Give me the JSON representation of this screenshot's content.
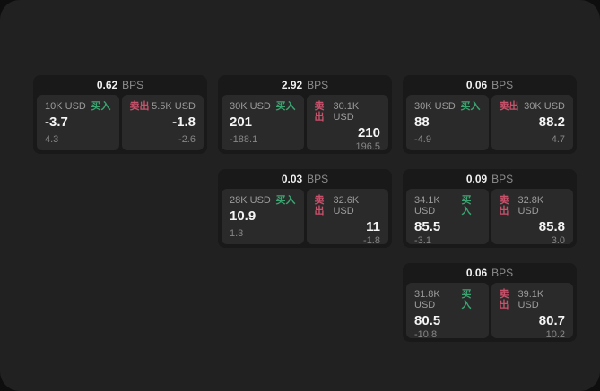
{
  "app": {
    "bps_label": "BPS",
    "buy_label": "买入",
    "sell_label": "卖出"
  },
  "colors": {
    "buy_green": "#3aa571",
    "sell_red": "#c9516b",
    "surface_bg": "#212121",
    "card_bg": "#191919",
    "panel_bg": "#2a2a2a"
  },
  "cards": [
    {
      "bps_value": "0.62",
      "buy": {
        "amount": "10K USD",
        "value": "-3.7",
        "sub_value": "4.3"
      },
      "sell": {
        "amount": "5.5K USD",
        "value": "-1.8",
        "sub_value": "-2.6"
      }
    },
    {
      "bps_value": "2.92",
      "buy": {
        "amount": "30K USD",
        "value": "201",
        "sub_value": "-188.1"
      },
      "sell": {
        "amount": "30.1K USD",
        "value": "210",
        "sub_value": "196.5"
      }
    },
    {
      "bps_value": "0.06",
      "buy": {
        "amount": "30K USD",
        "value": "88",
        "sub_value": "-4.9"
      },
      "sell": {
        "amount": "30K USD",
        "value": "88.2",
        "sub_value": "4.7"
      }
    },
    {
      "bps_value": "0.03",
      "buy": {
        "amount": "28K USD",
        "value": "10.9",
        "sub_value": "1.3"
      },
      "sell": {
        "amount": "32.6K USD",
        "value": "11",
        "sub_value": "-1.8"
      }
    },
    {
      "bps_value": "0.09",
      "buy": {
        "amount": "34.1K USD",
        "value": "85.5",
        "sub_value": "-3.1"
      },
      "sell": {
        "amount": "32.8K USD",
        "value": "85.8",
        "sub_value": "3.0"
      }
    },
    {
      "bps_value": "0.06",
      "buy": {
        "amount": "31.8K USD",
        "value": "80.5",
        "sub_value": "-10.8"
      },
      "sell": {
        "amount": "39.1K USD",
        "value": "80.7",
        "sub_value": "10.2"
      }
    }
  ]
}
